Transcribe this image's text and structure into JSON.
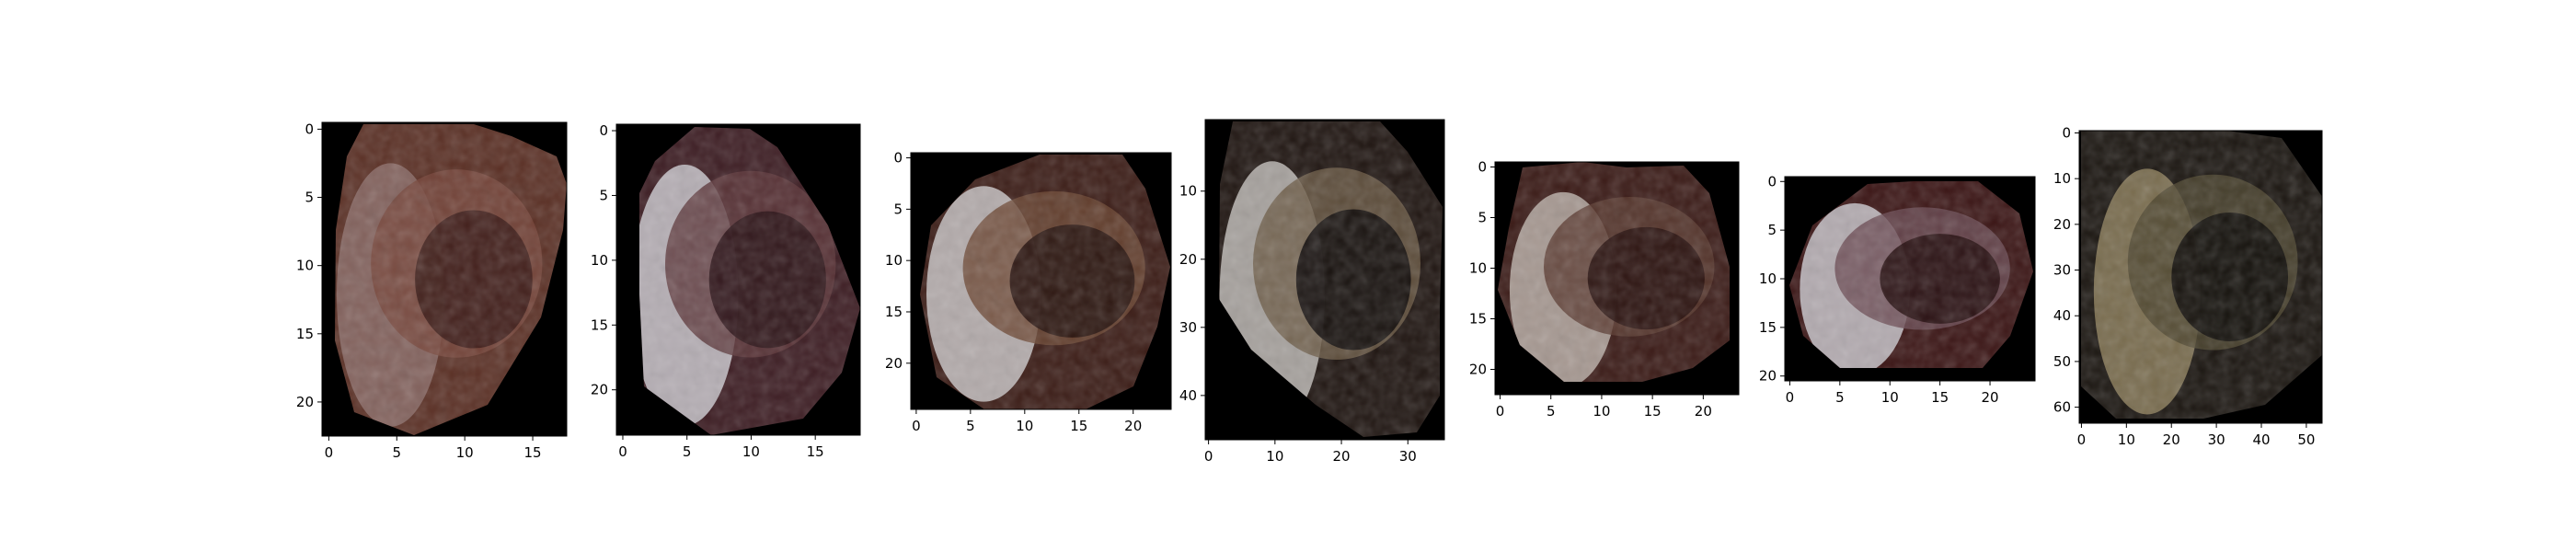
{
  "figure": {
    "panels": [
      {
        "id": "crop-1",
        "x_ticks": [
          "0",
          "5",
          "10",
          "15"
        ],
        "y_ticks": [
          "0",
          "5",
          "10",
          "15",
          "20"
        ],
        "x_range": [
          0,
          17
        ],
        "y_range": [
          0,
          22
        ],
        "palette": {
          "base": "#5a2f24",
          "mid": "#77463b",
          "light": "#8a6a66",
          "dark": "#3a1a16"
        }
      },
      {
        "id": "crop-2",
        "x_ticks": [
          "0",
          "5",
          "10",
          "15"
        ],
        "y_ticks": [
          "0",
          "5",
          "10",
          "15",
          "20"
        ],
        "x_range": [
          0,
          18
        ],
        "y_range": [
          0,
          23
        ],
        "palette": {
          "base": "#3c1c22",
          "mid": "#5b3438",
          "light": "#c9c7cc",
          "dark": "#2a1216"
        }
      },
      {
        "id": "crop-3",
        "x_ticks": [
          "0",
          "5",
          "10",
          "15",
          "20"
        ],
        "y_ticks": [
          "0",
          "5",
          "10",
          "15",
          "20"
        ],
        "x_range": [
          0,
          23
        ],
        "y_range": [
          0,
          24
        ],
        "palette": {
          "base": "#3b1c16",
          "mid": "#6b4632",
          "light": "#c8c3c4",
          "dark": "#24110d"
        }
      },
      {
        "id": "crop-4",
        "x_ticks": [
          "0",
          "10",
          "20",
          "30"
        ],
        "y_ticks": [
          "10",
          "20",
          "30",
          "40"
        ],
        "x_range": [
          0,
          35
        ],
        "y_range": [
          0,
          46
        ],
        "palette": {
          "base": "#1e1410",
          "mid": "#6b5a45",
          "light": "#bdb8b5",
          "dark": "#0c0808"
        }
      },
      {
        "id": "crop-5",
        "x_ticks": [
          "0",
          "5",
          "10",
          "15",
          "20"
        ],
        "y_ticks": [
          "0",
          "5",
          "10",
          "15",
          "20"
        ],
        "x_range": [
          0,
          23
        ],
        "y_range": [
          0,
          22
        ],
        "palette": {
          "base": "#3a1a16",
          "mid": "#5a3a30",
          "light": "#b8aea6",
          "dark": "#260e0c"
        }
      },
      {
        "id": "crop-6",
        "x_ticks": [
          "0",
          "5",
          "10",
          "15",
          "20"
        ],
        "y_ticks": [
          "0",
          "5",
          "10",
          "15",
          "20"
        ],
        "x_range": [
          0,
          24
        ],
        "y_range": [
          0,
          20
        ],
        "palette": {
          "base": "#3a1414",
          "mid": "#6a4a52",
          "light": "#c8c4ca",
          "dark": "#220a0c"
        }
      },
      {
        "id": "crop-7",
        "x_ticks": [
          "0",
          "10",
          "20",
          "30",
          "40",
          "50"
        ],
        "y_ticks": [
          "0",
          "10",
          "20",
          "30",
          "40",
          "50",
          "60"
        ],
        "x_range": [
          0,
          53
        ],
        "y_range": [
          0,
          63
        ],
        "palette": {
          "base": "#1a1510",
          "mid": "#4e4630",
          "light": "#8a7a58",
          "dark": "#0a0806"
        }
      }
    ]
  }
}
